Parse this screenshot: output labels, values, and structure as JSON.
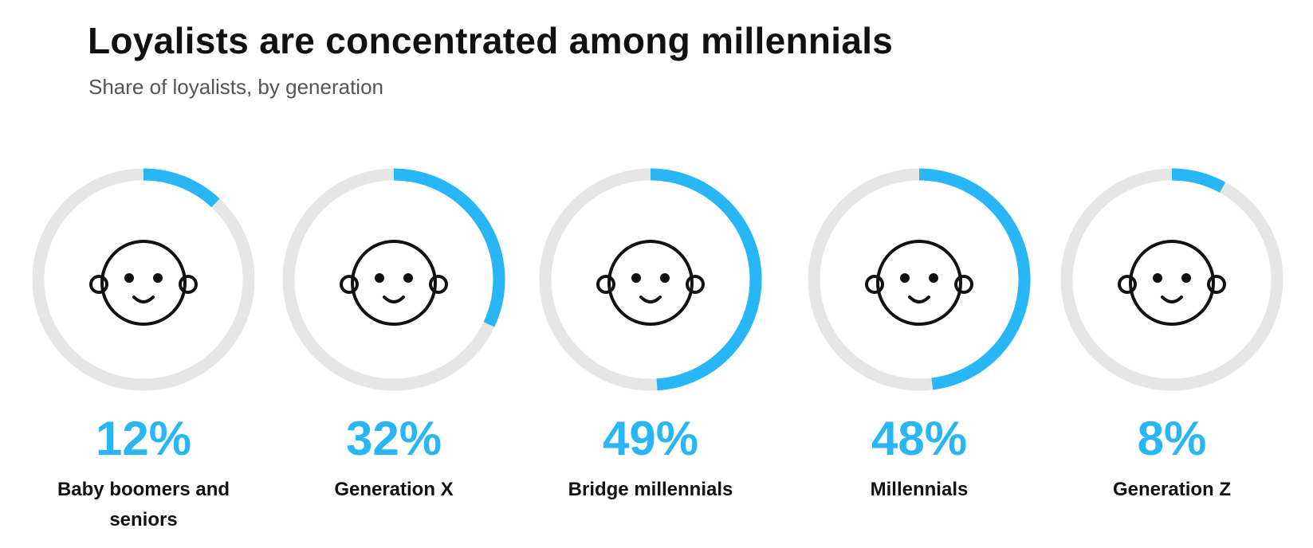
{
  "chart_data": {
    "type": "ring",
    "title": "Loyalists are concentrated among millennials",
    "subtitle": "Share of loyalists, by generation",
    "categories": [
      "Baby boomers and seniors",
      "Generation X",
      "Bridge millennials",
      "Millennials",
      "Generation Z"
    ],
    "values": [
      12,
      32,
      49,
      48,
      8
    ],
    "value_labels": [
      "12%",
      "32%",
      "49%",
      "48%",
      "8%"
    ],
    "ylim": [
      0,
      100
    ],
    "color": "#29b6f6",
    "track_color": "#e6e6e6"
  }
}
